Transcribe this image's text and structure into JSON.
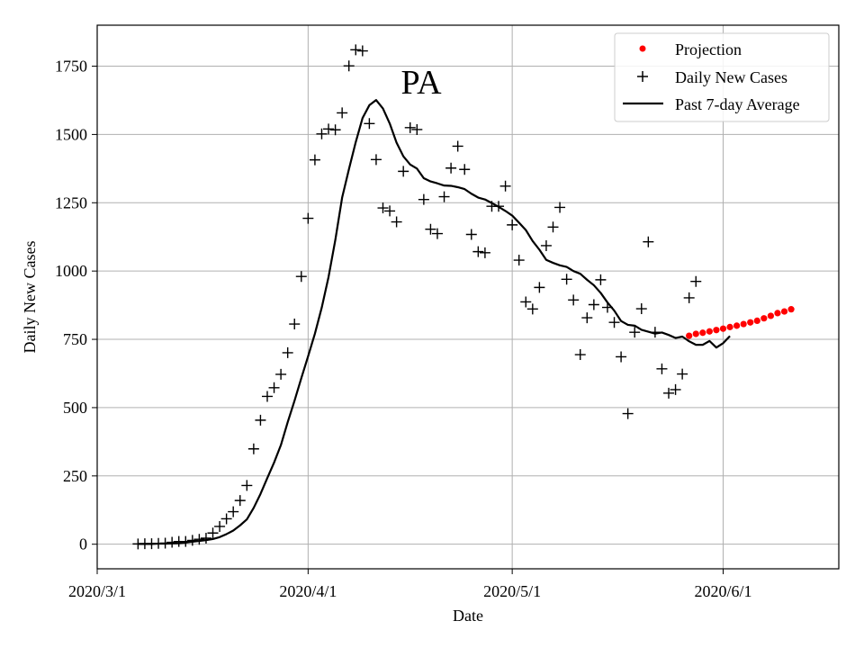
{
  "chart_data": {
    "type": "scatter",
    "title": "PA",
    "xlabel": "Date",
    "ylabel": "Daily New Cases",
    "x_ticks": [
      "2020/3/1",
      "2020/4/1",
      "2020/5/1",
      "2020/6/1"
    ],
    "y_ticks": [
      "0",
      "250",
      "500",
      "750",
      "1000",
      "1250",
      "1500",
      "1750"
    ],
    "xlim_days_since_mar1": [
      0,
      109
    ],
    "ylim": [
      -90,
      1900
    ],
    "grid": true,
    "legend_position": "top-right",
    "legend": [
      "Projection",
      "Daily New Cases",
      "Past 7-day Average"
    ],
    "colors": {
      "projection": "#ff0000",
      "daily": "#000000",
      "average": "#000000"
    },
    "series": [
      {
        "name": "Daily New Cases",
        "marker": "plus",
        "start_day": 6,
        "values": [
          1,
          2,
          2,
          3,
          4,
          7,
          10,
          10,
          14,
          18,
          22,
          41,
          65,
          93,
          119,
          160,
          215,
          349,
          454,
          541,
          573,
          622,
          701,
          806,
          980,
          1193,
          1407,
          1502,
          1520,
          1517,
          1579,
          1751,
          1810,
          1806,
          1540,
          1408,
          1231,
          1220,
          1180,
          1365,
          1525,
          1518,
          1262,
          1153,
          1137,
          1272,
          1377,
          1457,
          1372,
          1134,
          1071,
          1067,
          1237,
          1237,
          1311,
          1169,
          1040,
          887,
          861,
          940,
          1093,
          1161,
          1233,
          970,
          894,
          694,
          829,
          877,
          968,
          867,
          812,
          686,
          478,
          776,
          862,
          1107,
          776,
          642,
          553,
          566,
          623,
          902,
          962
        ]
      },
      {
        "name": "Past 7-day Average",
        "marker": "line",
        "start_day": 6,
        "values": [
          1,
          1,
          1,
          2,
          2,
          3,
          4,
          6,
          9,
          12,
          15,
          19,
          26,
          37,
          50,
          69,
          91,
          133,
          184,
          242,
          299,
          363,
          447,
          525,
          608,
          688,
          771,
          866,
          978,
          1114,
          1269,
          1373,
          1472,
          1560,
          1607,
          1626,
          1595,
          1540,
          1470,
          1420,
          1390,
          1375,
          1340,
          1328,
          1321,
          1313,
          1312,
          1307,
          1300,
          1283,
          1269,
          1262,
          1249,
          1235,
          1220,
          1203,
          1177,
          1150,
          1110,
          1078,
          1041,
          1030,
          1021,
          1015,
          1000,
          990,
          968,
          948,
          920,
          885,
          855,
          817,
          803,
          800,
          785,
          778,
          771,
          775,
          766,
          755,
          760,
          743,
          730,
          730,
          744,
          720,
          736,
          762
        ]
      },
      {
        "name": "Projection",
        "marker": "dot",
        "start_day": 87,
        "values": [
          763,
          770,
          774,
          779,
          784,
          789,
          795,
          800,
          806,
          812,
          818,
          827,
          836,
          846,
          852,
          860
        ]
      }
    ]
  }
}
